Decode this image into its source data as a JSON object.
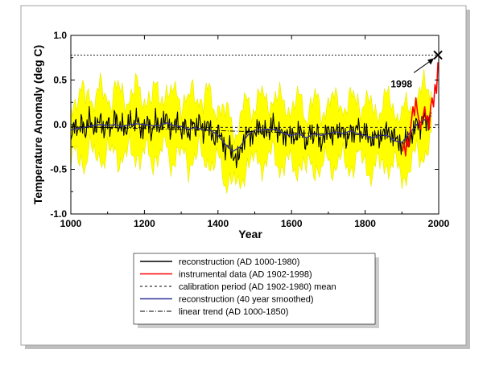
{
  "chart_data": {
    "type": "line",
    "title": "",
    "xlabel": "Year",
    "ylabel": "Temperature Anomaly (deg C)",
    "xlim": [
      1000,
      2000
    ],
    "ylim": [
      -1.0,
      1.0
    ],
    "x_ticks": [
      "1000",
      "1200",
      "1400",
      "1600",
      "1800",
      "2000"
    ],
    "y_ticks": [
      "-1.0",
      "-0.5",
      "0.0",
      "0.5",
      "1.0"
    ],
    "grid": false,
    "legend_position": "bottom",
    "annotation": {
      "label": "1998",
      "x": 1998,
      "y": 0.78
    },
    "calibration_mean": -0.03,
    "uncertainty_halfwidth": 0.34,
    "series": [
      {
        "name": "reconstruction (AD 1000-1980)",
        "color": "#000000",
        "style": "solid",
        "x": [
          1000,
          1010,
          1020,
          1030,
          1040,
          1050,
          1060,
          1070,
          1080,
          1090,
          1100,
          1110,
          1120,
          1130,
          1140,
          1150,
          1160,
          1170,
          1180,
          1190,
          1200,
          1210,
          1220,
          1230,
          1240,
          1250,
          1260,
          1270,
          1280,
          1290,
          1300,
          1310,
          1320,
          1330,
          1340,
          1350,
          1360,
          1370,
          1380,
          1390,
          1400,
          1410,
          1420,
          1430,
          1440,
          1450,
          1460,
          1470,
          1480,
          1490,
          1500,
          1510,
          1520,
          1530,
          1540,
          1550,
          1560,
          1570,
          1580,
          1590,
          1600,
          1610,
          1620,
          1630,
          1640,
          1650,
          1660,
          1670,
          1680,
          1690,
          1700,
          1710,
          1720,
          1730,
          1740,
          1750,
          1760,
          1770,
          1780,
          1790,
          1800,
          1810,
          1820,
          1830,
          1840,
          1850,
          1860,
          1870,
          1880,
          1890,
          1900,
          1910,
          1920,
          1930,
          1940,
          1950,
          1960,
          1970,
          1980
        ],
        "values": [
          -0.15,
          0.02,
          -0.08,
          0.05,
          -0.12,
          0.1,
          -0.05,
          -0.02,
          0.08,
          -0.1,
          0.05,
          -0.08,
          0.12,
          -0.05,
          0.02,
          -0.1,
          0.08,
          -0.03,
          0.1,
          -0.08,
          -0.02,
          0.05,
          -0.12,
          0.08,
          -0.05,
          0.02,
          0.1,
          -0.08,
          -0.02,
          0.05,
          -0.1,
          0.03,
          -0.15,
          0.05,
          -0.08,
          0.08,
          -0.12,
          0.02,
          -0.05,
          -0.2,
          -0.05,
          -0.15,
          -0.3,
          -0.2,
          -0.35,
          -0.4,
          -0.3,
          -0.2,
          -0.05,
          -0.15,
          -0.1,
          0.0,
          -0.1,
          -0.05,
          -0.1,
          0.05,
          -0.1,
          -0.05,
          -0.15,
          -0.1,
          -0.1,
          -0.18,
          -0.05,
          -0.1,
          -0.25,
          -0.05,
          -0.15,
          -0.05,
          -0.25,
          -0.1,
          -0.05,
          -0.15,
          -0.05,
          -0.1,
          -0.05,
          -0.2,
          -0.05,
          -0.12,
          0.02,
          -0.15,
          -0.05,
          -0.15,
          -0.2,
          -0.1,
          -0.18,
          -0.08,
          -0.05,
          -0.15,
          -0.1,
          -0.2,
          -0.25,
          -0.15,
          -0.2,
          -0.1,
          0.05,
          -0.05,
          0.1,
          0.0,
          0.15
        ]
      },
      {
        "name": "instrumental data (AD 1902-1998)",
        "color": "#ff0000",
        "style": "solid",
        "x": [
          1902,
          1906,
          1910,
          1914,
          1918,
          1922,
          1926,
          1930,
          1934,
          1938,
          1942,
          1946,
          1950,
          1954,
          1958,
          1962,
          1966,
          1970,
          1974,
          1978,
          1982,
          1986,
          1990,
          1994,
          1998
        ],
        "values": [
          -0.3,
          -0.2,
          -0.35,
          -0.15,
          -0.25,
          -0.1,
          0.05,
          0.2,
          0.1,
          0.3,
          0.15,
          0.05,
          -0.05,
          0.05,
          0.1,
          0.2,
          0.05,
          0.1,
          -0.05,
          0.2,
          0.3,
          0.2,
          0.45,
          0.35,
          0.7
        ]
      },
      {
        "name": "calibration period (AD 1902-1980) mean",
        "color": "#000000",
        "style": "dashed",
        "x": [
          1000,
          2000
        ],
        "values": [
          -0.03,
          -0.03
        ]
      },
      {
        "name": "reconstruction (40 year smoothed)",
        "color": "#333399",
        "style": "solid",
        "x": [
          1000,
          1020,
          1040,
          1060,
          1080,
          1100,
          1120,
          1140,
          1160,
          1180,
          1200,
          1220,
          1240,
          1260,
          1280,
          1300,
          1320,
          1340,
          1360,
          1380,
          1400,
          1420,
          1440,
          1460,
          1480,
          1500,
          1520,
          1540,
          1560,
          1580,
          1600,
          1620,
          1640,
          1660,
          1680,
          1700,
          1720,
          1740,
          1760,
          1780,
          1800,
          1820,
          1840,
          1860,
          1880,
          1900,
          1920,
          1940,
          1960,
          1980
        ],
        "values": [
          -0.06,
          -0.04,
          -0.03,
          -0.01,
          0.0,
          -0.01,
          0.0,
          -0.02,
          0.0,
          0.01,
          0.0,
          -0.01,
          -0.01,
          0.02,
          -0.01,
          -0.02,
          -0.05,
          -0.03,
          -0.06,
          -0.06,
          -0.12,
          -0.22,
          -0.3,
          -0.25,
          -0.12,
          -0.06,
          -0.06,
          -0.05,
          -0.06,
          -0.1,
          -0.12,
          -0.1,
          -0.15,
          -0.1,
          -0.12,
          -0.1,
          -0.08,
          -0.1,
          -0.07,
          -0.1,
          -0.12,
          -0.15,
          -0.12,
          -0.12,
          -0.18,
          -0.2,
          -0.1,
          0.0,
          0.05,
          0.1
        ]
      },
      {
        "name": "linear trend (AD 1000-1850)",
        "color": "#000000",
        "style": "dashdot",
        "x": [
          1000,
          1850
        ],
        "values": [
          -0.02,
          -0.12
        ]
      }
    ]
  }
}
